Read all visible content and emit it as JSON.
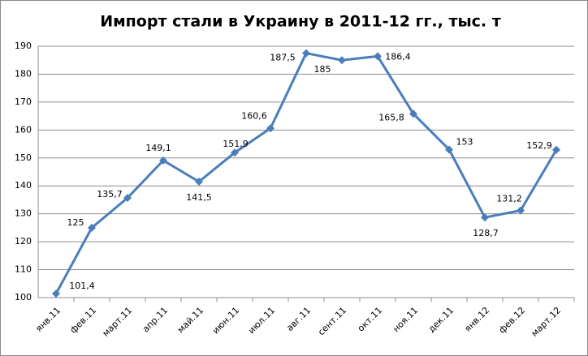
{
  "chart_data": {
    "type": "line",
    "title": "Импорт стали в Украину в 2011-12 гг., тыс. т",
    "categories": [
      "янв.11",
      "фев.11",
      "март.11",
      "апр.11",
      "май.11",
      "июн.11",
      "июл.11",
      "авг.11",
      "сент.11",
      "окт.11",
      "ноя.11",
      "дек.11",
      "янв.12",
      "фев.12",
      "март.12"
    ],
    "values": [
      101.4,
      125,
      135.7,
      149.1,
      141.5,
      151.9,
      160.6,
      187.5,
      185,
      186.4,
      165.8,
      153,
      128.7,
      131.2,
      152.9
    ],
    "value_labels": [
      "101,4",
      "125",
      "135,7",
      "149,1",
      "141,5",
      "151,9",
      "160,6",
      "187,5",
      "185",
      "186,4",
      "165,8",
      "153",
      "128,7",
      "131,2",
      "152,9"
    ],
    "color": "#4a7ebb",
    "ylim": [
      100,
      190
    ],
    "yticks": [
      100,
      110,
      120,
      130,
      140,
      150,
      160,
      170,
      180,
      190
    ],
    "grid": true
  }
}
